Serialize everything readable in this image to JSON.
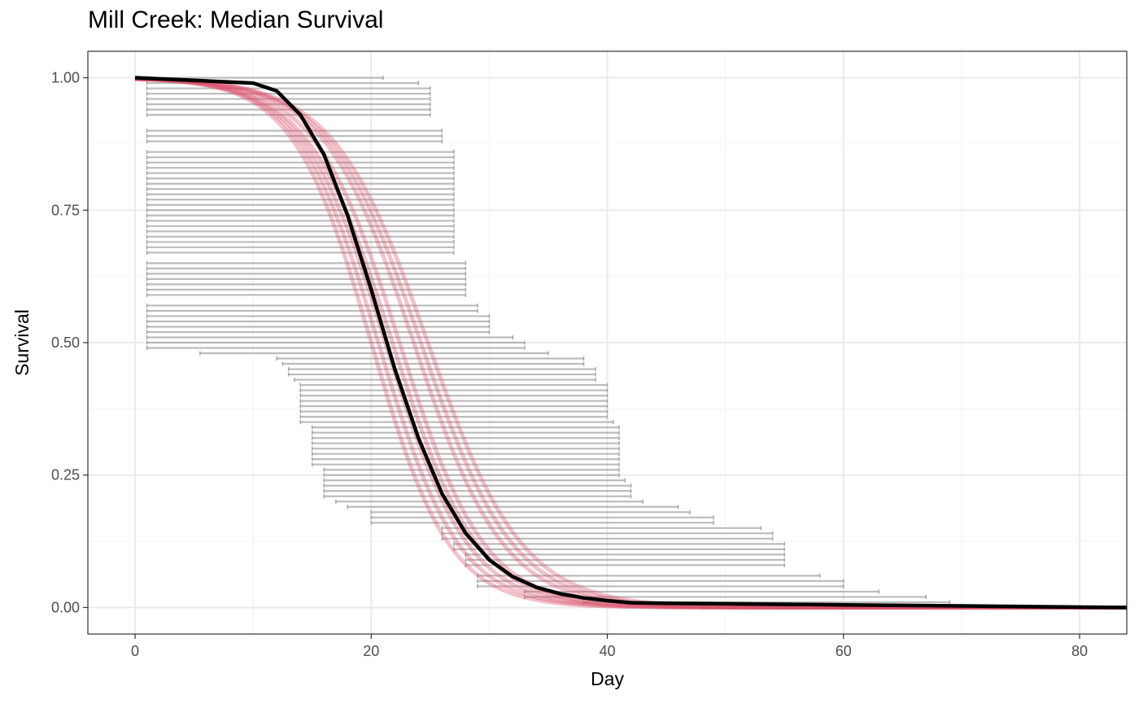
{
  "chart_data": {
    "type": "line",
    "title": "Mill Creek: Median Survival",
    "xlabel": "Day",
    "ylabel": "Survival",
    "xlim": [
      -4,
      84
    ],
    "ylim": [
      -0.05,
      1.05
    ],
    "x_ticks": [
      0,
      20,
      40,
      60,
      80
    ],
    "x_tick_labels": [
      "0",
      "20",
      "40",
      "60",
      "80"
    ],
    "y_ticks": [
      0,
      0.25,
      0.5,
      0.75,
      1
    ],
    "y_tick_labels": [
      "0.00",
      "0.25",
      "0.50",
      "0.75",
      "1.00"
    ],
    "grid": true,
    "interval_color": "#a6a6a6",
    "curve_color": "#d94f6a",
    "median_color": "#000000",
    "intervals": [
      [
        1,
        21,
        1.0
      ],
      [
        1,
        24,
        0.99
      ],
      [
        1,
        25,
        0.98
      ],
      [
        1,
        25,
        0.97
      ],
      [
        1,
        25,
        0.96
      ],
      [
        1,
        25,
        0.95
      ],
      [
        1,
        25,
        0.94
      ],
      [
        1,
        25,
        0.93
      ],
      [
        1,
        26,
        0.9
      ],
      [
        1,
        26,
        0.89
      ],
      [
        1,
        26,
        0.88
      ],
      [
        1,
        27,
        0.86
      ],
      [
        1,
        27,
        0.85
      ],
      [
        1,
        27,
        0.84
      ],
      [
        1,
        27,
        0.83
      ],
      [
        1,
        27,
        0.82
      ],
      [
        1,
        27,
        0.81
      ],
      [
        1,
        27,
        0.8
      ],
      [
        1,
        27,
        0.79
      ],
      [
        1,
        27,
        0.78
      ],
      [
        1,
        27,
        0.77
      ],
      [
        1,
        27,
        0.76
      ],
      [
        1,
        27,
        0.75
      ],
      [
        1,
        27,
        0.74
      ],
      [
        1,
        27,
        0.73
      ],
      [
        1,
        27,
        0.72
      ],
      [
        1,
        27,
        0.71
      ],
      [
        1,
        27,
        0.7
      ],
      [
        1,
        27,
        0.69
      ],
      [
        1,
        27,
        0.68
      ],
      [
        1,
        27,
        0.67
      ],
      [
        1,
        28,
        0.65
      ],
      [
        1,
        28,
        0.64
      ],
      [
        1,
        28,
        0.63
      ],
      [
        1,
        28,
        0.62
      ],
      [
        1,
        28,
        0.61
      ],
      [
        1,
        28,
        0.6
      ],
      [
        1,
        28,
        0.59
      ],
      [
        1,
        29,
        0.57
      ],
      [
        1,
        29,
        0.56
      ],
      [
        1,
        30,
        0.55
      ],
      [
        1,
        30,
        0.54
      ],
      [
        1,
        30,
        0.53
      ],
      [
        1,
        30,
        0.52
      ],
      [
        1,
        32,
        0.51
      ],
      [
        1,
        33,
        0.5
      ],
      [
        1,
        33,
        0.49
      ],
      [
        5.5,
        35,
        0.48
      ],
      [
        12,
        38,
        0.47
      ],
      [
        12.5,
        38,
        0.46
      ],
      [
        13,
        39,
        0.45
      ],
      [
        13,
        39,
        0.44
      ],
      [
        13.5,
        39,
        0.43
      ],
      [
        14,
        40,
        0.42
      ],
      [
        14,
        40,
        0.41
      ],
      [
        14,
        40,
        0.4
      ],
      [
        14,
        40,
        0.39
      ],
      [
        14,
        40,
        0.38
      ],
      [
        14,
        40,
        0.37
      ],
      [
        14,
        40,
        0.36
      ],
      [
        14,
        40.5,
        0.35
      ],
      [
        15,
        41,
        0.34
      ],
      [
        15,
        41,
        0.33
      ],
      [
        15,
        41,
        0.32
      ],
      [
        15,
        41,
        0.31
      ],
      [
        15,
        41,
        0.3
      ],
      [
        15,
        41,
        0.29
      ],
      [
        15,
        41,
        0.28
      ],
      [
        15,
        41,
        0.27
      ],
      [
        16,
        41,
        0.26
      ],
      [
        16,
        41,
        0.25
      ],
      [
        16,
        41.5,
        0.24
      ],
      [
        16,
        42,
        0.23
      ],
      [
        16,
        42,
        0.22
      ],
      [
        16,
        42,
        0.21
      ],
      [
        17,
        43,
        0.2
      ],
      [
        18,
        46,
        0.19
      ],
      [
        20,
        47,
        0.18
      ],
      [
        20,
        49,
        0.17
      ],
      [
        20,
        49,
        0.16
      ],
      [
        26,
        53,
        0.15
      ],
      [
        26,
        54,
        0.14
      ],
      [
        26,
        54,
        0.13
      ],
      [
        27,
        55,
        0.12
      ],
      [
        27,
        55,
        0.11
      ],
      [
        28,
        55,
        0.1
      ],
      [
        28,
        55,
        0.09
      ],
      [
        28,
        55,
        0.08
      ],
      [
        29,
        58,
        0.06
      ],
      [
        29,
        60,
        0.05
      ],
      [
        29,
        60,
        0.04
      ],
      [
        33,
        63,
        0.03
      ],
      [
        33,
        67,
        0.02
      ],
      [
        38,
        69,
        0.01
      ],
      [
        48,
        76,
        0.0
      ]
    ],
    "curves": [
      {
        "t50": 20.0,
        "scale": 3.3
      },
      {
        "t50": 20.6,
        "scale": 3.4
      },
      {
        "t50": 21.2,
        "scale": 3.5
      },
      {
        "t50": 21.8,
        "scale": 3.6
      },
      {
        "t50": 22.4,
        "scale": 3.6
      },
      {
        "t50": 23.6,
        "scale": 3.8
      },
      {
        "t50": 24.2,
        "scale": 3.9
      },
      {
        "t50": 24.8,
        "scale": 4.0
      }
    ],
    "median": {
      "x": [
        0,
        5,
        10,
        12,
        14,
        16,
        18,
        20,
        22,
        24,
        26,
        28,
        30,
        32,
        34,
        36,
        38,
        40,
        42,
        45,
        50,
        60,
        70,
        84
      ],
      "y": [
        1.0,
        0.995,
        0.99,
        0.975,
        0.93,
        0.855,
        0.74,
        0.6,
        0.45,
        0.32,
        0.215,
        0.14,
        0.09,
        0.058,
        0.038,
        0.026,
        0.018,
        0.013,
        0.009,
        0.008,
        0.007,
        0.005,
        0.003,
        0.0
      ]
    }
  }
}
